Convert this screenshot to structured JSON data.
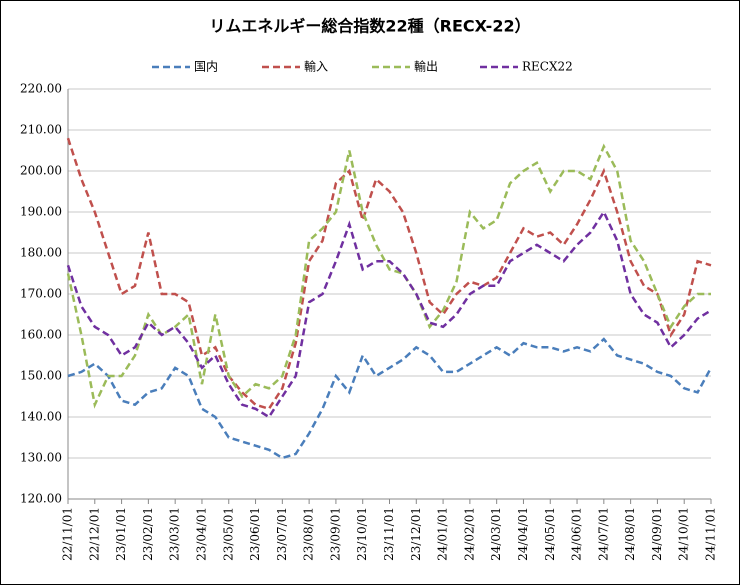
{
  "chart_data": {
    "type": "line",
    "title": "リムエネルギー総合指数22種（RECX-22）",
    "categories": [
      "22/11/01",
      null,
      "22/12/01",
      null,
      "23/01/01",
      null,
      "23/02/01",
      null,
      "23/03/01",
      null,
      "23/04/01",
      null,
      "23/05/01",
      null,
      "23/06/01",
      null,
      "23/07/01",
      null,
      "23/08/01",
      null,
      "23/09/01",
      null,
      "23/10/01",
      null,
      "23/11/01",
      null,
      "23/12/01",
      null,
      "24/01/01",
      null,
      "24/02/01",
      null,
      "24/03/01",
      null,
      "24/04/01",
      null,
      "24/05/01",
      null,
      "24/06/01",
      null,
      "24/07/01",
      null,
      "24/08/01",
      null,
      "24/09/01",
      null,
      "24/10/01",
      null,
      "24/11/01"
    ],
    "series": [
      {
        "name": "国内",
        "color": "#4a7ebb",
        "values": [
          150,
          151,
          153,
          150,
          144,
          143,
          146,
          147,
          152,
          150,
          142,
          140,
          135,
          134,
          133,
          132,
          130,
          131,
          136,
          142,
          150,
          146,
          155,
          150,
          152,
          154,
          157,
          155,
          151,
          151,
          153,
          155,
          157,
          155,
          158,
          157,
          157,
          156,
          157,
          156,
          159,
          155,
          154,
          153,
          151,
          150,
          147,
          146,
          152
        ]
      },
      {
        "name": "輸入",
        "color": "#c0504d",
        "values": [
          208,
          198,
          190,
          180,
          170,
          172,
          185,
          170,
          170,
          168,
          155,
          157,
          150,
          146,
          143,
          142,
          147,
          158,
          178,
          183,
          197,
          200,
          188,
          198,
          195,
          190,
          180,
          168,
          165,
          170,
          173,
          172,
          174,
          180,
          186,
          184,
          185,
          182,
          187,
          193,
          200,
          190,
          178,
          172,
          170,
          160,
          165,
          178,
          177
        ]
      },
      {
        "name": "輸出",
        "color": "#9bbb59",
        "values": [
          175,
          160,
          143,
          150,
          150,
          155,
          165,
          160,
          162,
          165,
          148,
          165,
          150,
          145,
          148,
          147,
          150,
          160,
          183,
          186,
          190,
          205,
          190,
          182,
          176,
          175,
          170,
          162,
          166,
          173,
          190,
          186,
          188,
          197,
          200,
          202,
          195,
          200,
          200,
          198,
          206,
          200,
          183,
          178,
          170,
          162,
          167,
          170,
          170
        ]
      },
      {
        "name": "RECX22",
        "color": "#7030a0",
        "values": [
          177,
          167,
          162,
          160,
          155,
          157,
          163,
          160,
          162,
          158,
          152,
          155,
          148,
          143,
          142,
          140,
          145,
          150,
          168,
          170,
          178,
          187,
          176,
          178,
          178,
          175,
          170,
          163,
          162,
          165,
          170,
          172,
          172,
          178,
          180,
          182,
          180,
          178,
          182,
          185,
          190,
          183,
          170,
          165,
          163,
          157,
          160,
          164,
          166
        ]
      }
    ],
    "ylim": [
      120,
      220
    ],
    "yticks": [
      {
        "value": 120,
        "label": "120.00"
      },
      {
        "value": 130,
        "label": "130.00"
      },
      {
        "value": 140,
        "label": "140.00"
      },
      {
        "value": 150,
        "label": "150.00"
      },
      {
        "value": 160,
        "label": "160.00"
      },
      {
        "value": 170,
        "label": "170.00"
      },
      {
        "value": 180,
        "label": "180.00"
      },
      {
        "value": 190,
        "label": "190.00"
      },
      {
        "value": 200,
        "label": "200.00"
      },
      {
        "value": 210,
        "label": "210.00"
      },
      {
        "value": 220,
        "label": "220.00"
      }
    ],
    "grid": true
  }
}
